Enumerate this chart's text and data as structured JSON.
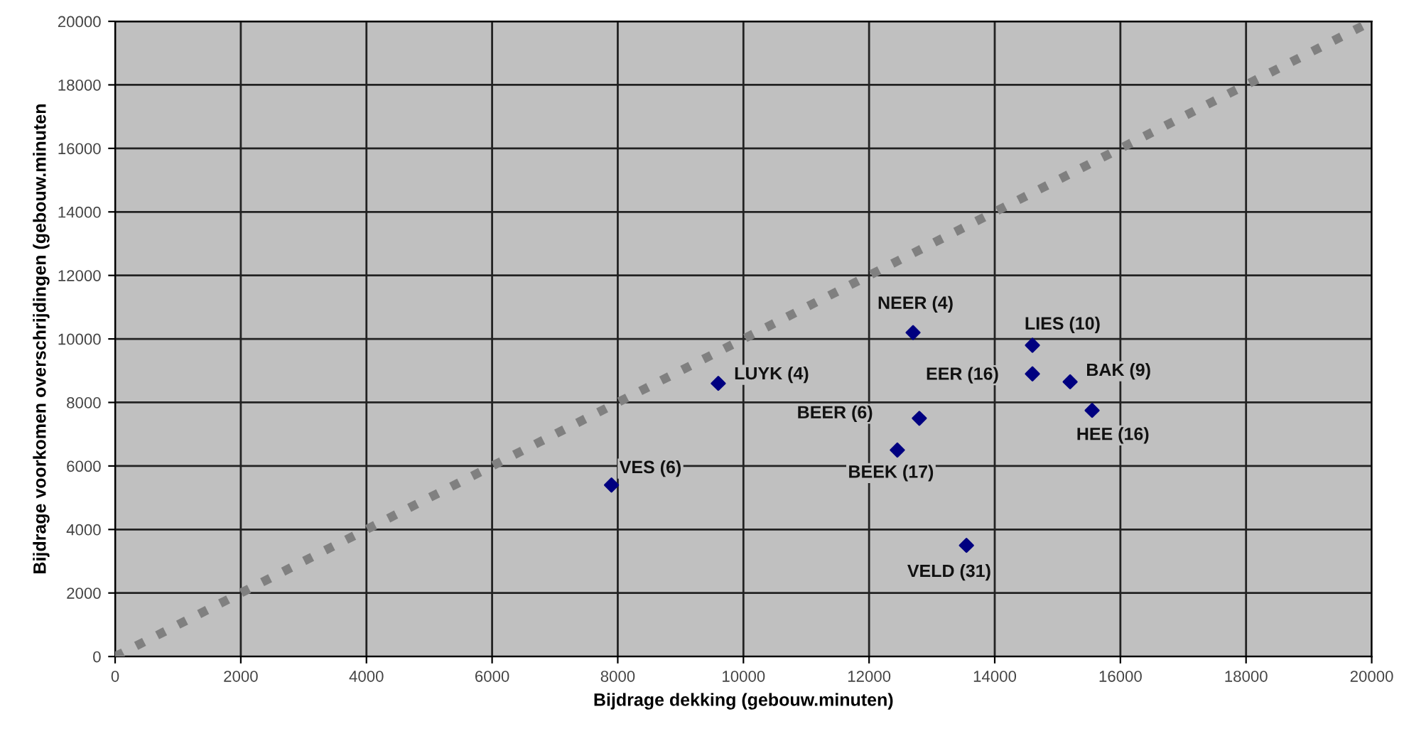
{
  "chart_data": {
    "type": "scatter",
    "xlabel": "Bijdrage dekking (gebouw.minuten)",
    "ylabel": "Bijdrage voorkomen overschrijdingen (gebouw.minuten",
    "series": [
      {
        "type": "scatter",
        "color": "#000080",
        "marker": "diamond",
        "x": [
          7900,
          9600,
          12700,
          14600,
          14600,
          15200,
          15550,
          12800,
          12450,
          13550
        ],
        "values": [
          5400,
          8600,
          10200,
          9800,
          8900,
          8650,
          7750,
          7500,
          6500,
          3500
        ]
      },
      {
        "type": "line",
        "color": "#808080",
        "line_style": "dotted",
        "marker": "none",
        "x": [
          0,
          20000
        ],
        "values": [
          0,
          20000
        ]
      }
    ],
    "annotations": [
      {
        "text": "VES (6)",
        "x": 7900,
        "y": 5400
      },
      {
        "text": "LUYK (4)",
        "x": 9600,
        "y": 8600
      },
      {
        "text": "NEER (4)",
        "x": 12700,
        "y": 10200
      },
      {
        "text": "LIES (10)",
        "x": 14600,
        "y": 9800
      },
      {
        "text": "EER (16)",
        "x": 14600,
        "y": 8900
      },
      {
        "text": "BAK (9)",
        "x": 15200,
        "y": 8650
      },
      {
        "text": "HEE (16)",
        "x": 15550,
        "y": 7750
      },
      {
        "text": "BEER (6)",
        "x": 12800,
        "y": 7500
      },
      {
        "text": "BEEK (17)",
        "x": 12450,
        "y": 6500
      },
      {
        "text": "VELD (31)",
        "x": 13550,
        "y": 3500
      }
    ],
    "xlim": [
      0,
      20000
    ],
    "ylim": [
      0,
      20000
    ],
    "xticks": [
      0,
      2000,
      4000,
      6000,
      8000,
      10000,
      12000,
      14000,
      16000,
      18000,
      20000
    ],
    "yticks": [
      0,
      2000,
      4000,
      6000,
      8000,
      10000,
      12000,
      14000,
      16000,
      18000,
      20000
    ],
    "grid": true,
    "legend": false
  }
}
